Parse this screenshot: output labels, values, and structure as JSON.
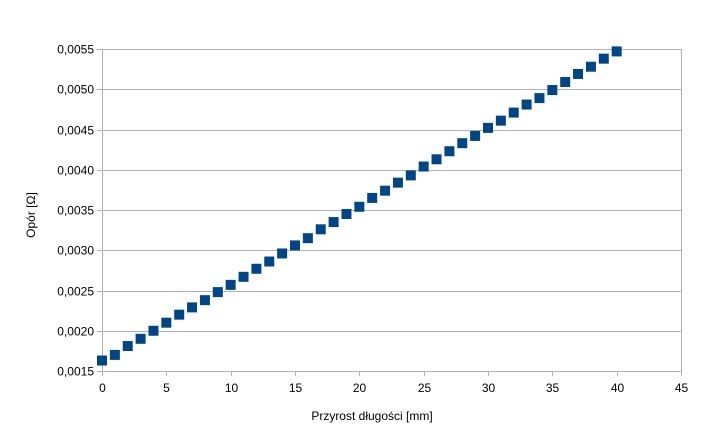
{
  "chart_data": {
    "type": "scatter",
    "title": "",
    "xlabel": "Przyrost długości [mm]",
    "ylabel": "Opór [Ω]",
    "xlim": [
      0,
      45
    ],
    "ylim": [
      0.0015,
      0.0055
    ],
    "x_ticks": [
      0,
      5,
      10,
      15,
      20,
      25,
      30,
      35,
      40,
      45
    ],
    "x_tick_labels": [
      "0",
      "5",
      "10",
      "15",
      "20",
      "25",
      "30",
      "35",
      "40",
      "45"
    ],
    "y_ticks": [
      0.0015,
      0.002,
      0.0025,
      0.003,
      0.0035,
      0.004,
      0.0045,
      0.005,
      0.0055
    ],
    "y_tick_labels": [
      "0,0015",
      "0,0020",
      "0,0025",
      "0,0030",
      "0,0035",
      "0,0040",
      "0,0045",
      "0,0050",
      "0,0055"
    ],
    "grid": {
      "horizontal": true,
      "vertical": false
    },
    "legend": "none",
    "marker": "square",
    "colors": {
      "marker": "#004586",
      "grid": "#b3b3b3",
      "axis": "#b3b3b3",
      "text": "#000000"
    },
    "x": [
      0,
      1,
      2,
      3,
      4,
      5,
      6,
      7,
      8,
      9,
      10,
      11,
      12,
      13,
      14,
      15,
      16,
      17,
      18,
      19,
      20,
      21,
      22,
      23,
      24,
      25,
      26,
      27,
      28,
      29,
      30,
      31,
      32,
      33,
      34,
      35,
      36,
      37,
      38,
      39,
      40
    ],
    "y": [
      0.00163,
      0.0017,
      0.00181,
      0.0019,
      0.002,
      0.0021,
      0.0022,
      0.00229,
      0.00238,
      0.00248,
      0.00257,
      0.00267,
      0.00277,
      0.00286,
      0.00296,
      0.00306,
      0.00315,
      0.00326,
      0.00335,
      0.00345,
      0.00354,
      0.00365,
      0.00374,
      0.00384,
      0.00393,
      0.00404,
      0.00413,
      0.00423,
      0.00433,
      0.00442,
      0.00452,
      0.00461,
      0.00471,
      0.00481,
      0.00489,
      0.00499,
      0.00509,
      0.00519,
      0.00528,
      0.00538,
      0.00547
    ]
  }
}
